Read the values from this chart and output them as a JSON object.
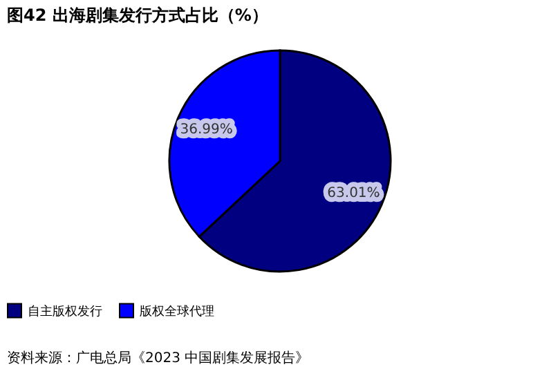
{
  "chart_data": {
    "type": "pie",
    "title": "图42 出海剧集发行方式占比（%）",
    "categories": [
      "自主版权发行",
      "版权全球代理"
    ],
    "values": [
      63.01,
      36.99
    ],
    "colors": [
      "#000080",
      "#0000ff"
    ],
    "value_labels": [
      "63.01%",
      "36.99%"
    ],
    "legend": "bottom",
    "annotations": [
      "资料来源：广电总局《2023 中国剧集发展报告》"
    ]
  }
}
